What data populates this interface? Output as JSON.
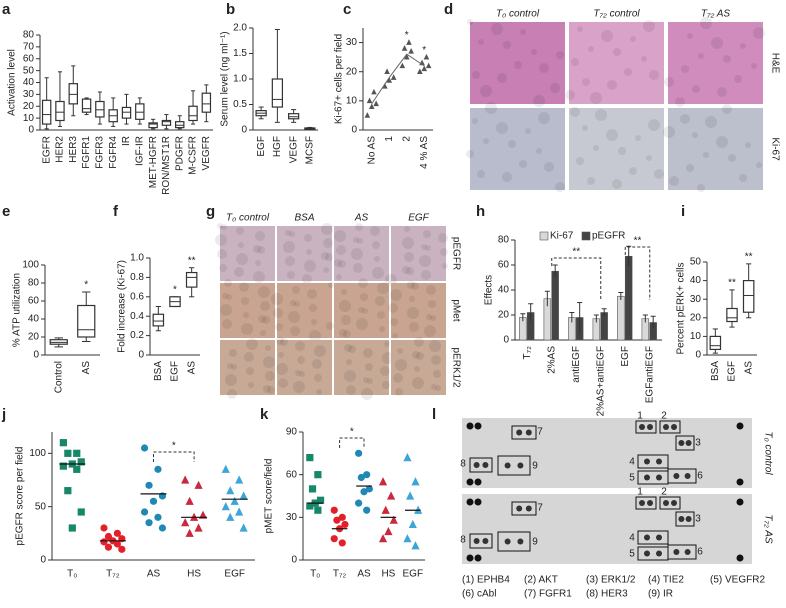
{
  "chart_data": [
    {
      "panel_label": "a",
      "type": "box",
      "ylabel": "Activation level",
      "ylim": [
        0,
        80
      ],
      "yticks": [
        0,
        10,
        20,
        30,
        40,
        50,
        60,
        70,
        80
      ],
      "categories": [
        "EGFR",
        "HER2",
        "HER3",
        "FGFR1",
        "FGFR3",
        "FGFR4",
        "IR",
        "IGF-IR",
        "MET-HGFR",
        "RON/MST1R",
        "PDGFR",
        "M-CSFR",
        "VEGFR"
      ],
      "boxes": [
        {
          "min": 1,
          "q1": 5,
          "median": 13,
          "q3": 25,
          "max": 44
        },
        {
          "min": 3,
          "q1": 8,
          "median": 15,
          "q3": 24,
          "max": 49
        },
        {
          "min": 12,
          "q1": 22,
          "median": 30,
          "q3": 39,
          "max": 54
        },
        {
          "min": 13,
          "q1": 15,
          "median": 18,
          "q3": 26,
          "max": 27
        },
        {
          "min": 5,
          "q1": 11,
          "median": 17,
          "q3": 24,
          "max": 32
        },
        {
          "min": 3,
          "q1": 7,
          "median": 12,
          "q3": 17,
          "max": 27
        },
        {
          "min": 5,
          "q1": 10,
          "median": 15,
          "q3": 19,
          "max": 30
        },
        {
          "min": 5,
          "q1": 9,
          "median": 15,
          "q3": 22,
          "max": 27
        },
        {
          "min": 1,
          "q1": 2,
          "median": 5,
          "q3": 6,
          "max": 9
        },
        {
          "min": 1,
          "q1": 4,
          "median": 7,
          "q3": 8,
          "max": 13
        },
        {
          "min": 1,
          "q1": 2,
          "median": 4,
          "q3": 7,
          "max": 12
        },
        {
          "min": 5,
          "q1": 8,
          "median": 12,
          "q3": 20,
          "max": 33
        },
        {
          "min": 7,
          "q1": 15,
          "median": 22,
          "q3": 31,
          "max": 38
        }
      ]
    },
    {
      "panel_label": "b",
      "type": "box",
      "ylabel": "Serum level (ng ml⁻¹)",
      "ylim": [
        0,
        2
      ],
      "yticks": [
        0,
        0.5,
        {
          "value": 1,
          "label": "1.0"
        },
        1.5,
        {
          "value": 2,
          "label": "2.0"
        }
      ],
      "categories": [
        "EGF",
        "HGF",
        "VEGF",
        "MCSF"
      ],
      "boxes": [
        {
          "min": 0.22,
          "q1": 0.28,
          "median": 0.33,
          "q3": 0.38,
          "max": 0.45
        },
        {
          "min": 0.15,
          "q1": 0.45,
          "median": 0.6,
          "q3": 1.0,
          "max": 1.97
        },
        {
          "min": 0.15,
          "q1": 0.22,
          "median": 0.26,
          "q3": 0.32,
          "max": 0.4
        },
        {
          "min": 0.01,
          "q1": 0.02,
          "median": 0.03,
          "q3": 0.04,
          "max": 0.05
        }
      ]
    },
    {
      "panel_label": "c",
      "type": "line",
      "ylabel": "Ki-67+ cells per field",
      "ylim": [
        0,
        35
      ],
      "yticks": [
        0,
        10,
        20,
        30
      ],
      "categories": [
        "No AS",
        "1",
        "2",
        "4 % AS"
      ],
      "values": [
        9,
        18,
        26,
        22
      ],
      "points": [
        [
          5,
          8,
          9,
          10,
          13
        ],
        [
          15,
          17,
          18,
          20
        ],
        [
          22,
          25,
          27,
          28,
          30
        ],
        [
          20,
          21,
          22,
          23,
          25
        ]
      ],
      "annotations": [
        null,
        null,
        "*",
        "*"
      ]
    },
    {
      "panel_label": "e",
      "type": "box",
      "ylabel": "% ATP utilization",
      "ylim": [
        0,
        100
      ],
      "yticks": [
        0,
        20,
        40,
        60,
        80,
        100
      ],
      "categories": [
        "Control",
        "AS"
      ],
      "boxes": [
        {
          "min": 9,
          "q1": 12,
          "median": 14,
          "q3": 17,
          "max": 19
        },
        {
          "min": 15,
          "q1": 20,
          "median": 28,
          "q3": 55,
          "max": 70
        }
      ],
      "annotations": [
        null,
        "*"
      ]
    },
    {
      "panel_label": "f",
      "type": "box",
      "ylabel": "Fold increase (Ki-67)",
      "ylim": [
        0,
        1
      ],
      "yticks": [
        0,
        0.2,
        0.4,
        0.6,
        0.8,
        {
          "value": 1,
          "label": "1.0"
        }
      ],
      "categories": [
        "BSA",
        "EGF",
        "AS"
      ],
      "boxes": [
        {
          "min": 0.25,
          "q1": 0.3,
          "median": 0.35,
          "q3": 0.42,
          "max": 0.5
        },
        {
          "min": 0.5,
          "q1": 0.5,
          "median": 0.55,
          "q3": 0.6,
          "max": 0.6
        },
        {
          "min": 0.6,
          "q1": 0.7,
          "median": 0.8,
          "q3": 0.85,
          "max": 0.9
        }
      ],
      "annotations": [
        null,
        "*",
        "**"
      ]
    },
    {
      "panel_label": "h",
      "type": "bar",
      "ylabel": "Effects",
      "ylim": [
        0,
        80
      ],
      "yticks": [
        0,
        20,
        40,
        60,
        80
      ],
      "categories": [
        "T₇₂",
        "2%AS",
        "antiEGF",
        "2%AS+antiEGF",
        "EGF",
        "EGFantiEGF"
      ],
      "series": [
        {
          "name": "Ki-67",
          "color": "#d9d9d9",
          "values": [
            18,
            33,
            18,
            17,
            35,
            17
          ],
          "errors": [
            3,
            6,
            4,
            3,
            3,
            3
          ]
        },
        {
          "name": "pEGFR",
          "color": "#444444",
          "values": [
            22,
            55,
            18,
            22,
            67,
            14
          ],
          "errors": [
            7,
            5,
            12,
            3,
            8,
            5
          ]
        }
      ],
      "bracket_labels": [
        "**",
        "**"
      ]
    },
    {
      "panel_label": "i",
      "type": "box",
      "ylabel": "Percent pERK+ cells",
      "ylim": [
        0,
        50
      ],
      "yticks": [
        0,
        10,
        20,
        30,
        40,
        50
      ],
      "categories": [
        "BSA",
        "EGF",
        "AS"
      ],
      "boxes": [
        {
          "min": 1,
          "q1": 3,
          "median": 5,
          "q3": 10,
          "max": 14
        },
        {
          "min": 15,
          "q1": 18,
          "median": 20,
          "q3": 25,
          "max": 35
        },
        {
          "min": 20,
          "q1": 23,
          "median": 32,
          "q3": 40,
          "max": 49
        }
      ],
      "annotations": [
        null,
        "**",
        "**"
      ]
    },
    {
      "panel_label": "j",
      "type": "dot",
      "ylabel": "pEGFR score per field",
      "ylim": [
        0,
        120
      ],
      "yticks": [
        0,
        50,
        100
      ],
      "categories": [
        "T₀",
        "T₇₂",
        "AS",
        "HS",
        "EGF"
      ],
      "colors": [
        "#17876a",
        "#e3202a",
        "#1f88b5",
        "#c9283e",
        "#3ea5d9"
      ],
      "markers": [
        "square",
        "circle",
        "circle",
        "triangle",
        "triangle"
      ],
      "points": [
        [
          110,
          100,
          100,
          92,
          90,
          88,
          85,
          65,
          45,
          30
        ],
        [
          30,
          25,
          22,
          20,
          18,
          17,
          15,
          12,
          10
        ],
        [
          105,
          85,
          70,
          60,
          55,
          45,
          40,
          35,
          30
        ],
        [
          75,
          70,
          55,
          42,
          40,
          35,
          30,
          25
        ],
        [
          85,
          75,
          65,
          60,
          55,
          50,
          45,
          40,
          30
        ]
      ],
      "means": [
        90,
        18,
        62,
        40,
        57
      ],
      "bracket_label": "*"
    },
    {
      "panel_label": "k",
      "type": "dot",
      "ylabel": "pMET score/field",
      "ylim": [
        0,
        90
      ],
      "yticks": [
        0,
        30,
        60,
        90
      ],
      "categories": [
        "T₀",
        "T₇₂",
        "AS",
        "HS",
        "EGF"
      ],
      "colors": [
        "#17876a",
        "#e3202a",
        "#1f88b5",
        "#c9283e",
        "#3ea5d9"
      ],
      "markers": [
        "square",
        "circle",
        "circle",
        "triangle",
        "triangle"
      ],
      "points": [
        [
          72,
          60,
          50,
          42,
          40,
          38,
          35
        ],
        [
          35,
          30,
          28,
          25,
          22,
          15,
          12
        ],
        [
          75,
          60,
          58,
          50,
          48,
          40,
          35
        ],
        [
          55,
          45,
          35,
          28,
          20,
          15
        ],
        [
          72,
          55,
          45,
          35,
          25,
          15,
          10
        ]
      ],
      "means": [
        40,
        22,
        52,
        30,
        35
      ],
      "bracket_label": "*"
    }
  ],
  "images": [
    {
      "panel_label": "d",
      "column_labels": [
        "T₀ control",
        "T₇₂ control",
        "T₇₂ AS"
      ],
      "row_labels": [
        "H&E",
        "Ki-67"
      ]
    },
    {
      "panel_label": "g",
      "column_labels": [
        "T₀ control",
        "BSA",
        "AS",
        "EGF"
      ],
      "row_labels": [
        "pEGFR",
        "pMet",
        "pERK1/2"
      ]
    },
    {
      "panel_label": "l",
      "row_labels": [
        "T₀ control",
        "T₇₂ AS"
      ],
      "spot_labels": [
        "7",
        "8",
        "9",
        "1",
        "2",
        "3",
        "4",
        "5",
        "6"
      ],
      "legend": [
        "(1) EPHB4",
        "(2) AKT",
        "(3) ERK1/2",
        "(4) TIE2",
        "(5) VEGFR2",
        "(6) cAbl",
        "(7) FGFR1",
        "(8) HER3",
        "(9) IR"
      ]
    }
  ]
}
